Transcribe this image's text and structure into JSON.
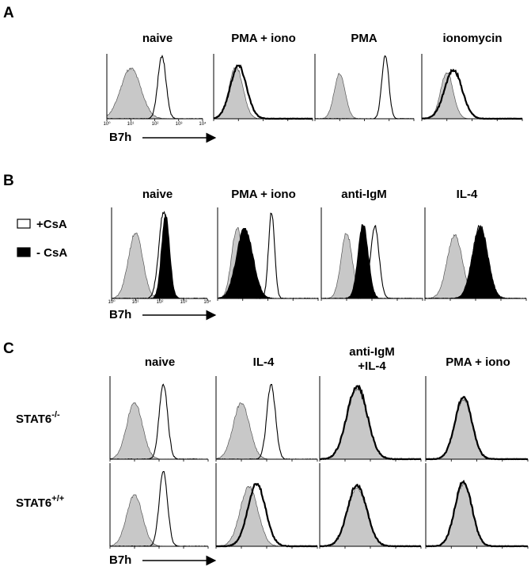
{
  "colors": {
    "control_fill": "#c8c8c8",
    "black": "#000000",
    "white": "#ffffff"
  },
  "panel_a": {
    "letter": "A",
    "x_label": "B7h",
    "titles": [
      "naive",
      "PMA + iono",
      "PMA",
      "ionomycin"
    ],
    "x_ticks": [
      "10⁰",
      "10¹",
      "10²",
      "10³",
      "10⁴"
    ]
  },
  "panel_b": {
    "letter": "B",
    "x_label": "B7h",
    "titles": [
      "naive",
      "PMA + iono",
      "anti-IgM",
      "IL-4"
    ],
    "legend": [
      {
        "label": "+CsA",
        "swatch": "open-box-icon"
      },
      {
        "label": "- CsA",
        "swatch": "filled-box-icon"
      }
    ],
    "x_ticks": [
      "10⁰",
      "10¹",
      "10²",
      "10³",
      "10⁴"
    ]
  },
  "panel_c": {
    "letter": "C",
    "x_label": "B7h",
    "titles": [
      {
        "line1": "naive",
        "line2": ""
      },
      {
        "line1": "IL-4",
        "line2": ""
      },
      {
        "line1": "anti-IgM",
        "line2": "+IL-4"
      },
      {
        "line1": "PMA + iono",
        "line2": ""
      }
    ],
    "rows": [
      {
        "base": "STAT6",
        "sup": "-/-"
      },
      {
        "base": "STAT6",
        "sup": "+/+"
      }
    ]
  },
  "chart_data": [
    {
      "type": "area",
      "panel": "A",
      "x_scale": "log",
      "xlim": [
        1,
        10000
      ],
      "xlabel": "B7h",
      "series_styles": {
        "control": "gray-filled",
        "sample": "open-black-line"
      },
      "plots": [
        {
          "title": "naive",
          "control": {
            "peak": 10,
            "width": 0.42,
            "height": 0.78
          },
          "sample": {
            "peak": 200,
            "width": 0.17,
            "height": 0.97,
            "bold": false,
            "filled": false
          }
        },
        {
          "title": "PMA + iono",
          "control": {
            "peak": 8,
            "width": 0.28,
            "height": 0.8
          },
          "sample": {
            "peak": 10,
            "width": 0.33,
            "height": 0.82,
            "bold": true,
            "filled": false
          }
        },
        {
          "title": "PMA",
          "control": {
            "peak": 10,
            "width": 0.22,
            "height": 0.7
          },
          "sample": {
            "peak": 700,
            "width": 0.14,
            "height": 0.97,
            "bold": false,
            "filled": false
          }
        },
        {
          "title": "ionomycin",
          "control": {
            "peak": 10,
            "width": 0.25,
            "height": 0.72
          },
          "sample": {
            "peak": 18,
            "width": 0.35,
            "height": 0.75,
            "bold": true,
            "filled": false
          }
        }
      ]
    },
    {
      "type": "area",
      "panel": "B",
      "x_scale": "log",
      "xlim": [
        1,
        10000
      ],
      "xlabel": "B7h",
      "series": [
        {
          "name": "+CsA",
          "style": "open-black-line"
        },
        {
          "name": "- CsA",
          "style": "black-filled"
        }
      ],
      "plots": [
        {
          "title": "naive",
          "control": {
            "peak": 10,
            "width": 0.3,
            "height": 0.72
          },
          "plus_csa": {
            "peak": 150,
            "width": 0.2,
            "height": 0.95
          },
          "minus_csa": {
            "peak": 180,
            "width": 0.17,
            "height": 0.92
          }
        },
        {
          "title": "PMA + iono",
          "control": {
            "peak": 6,
            "width": 0.22,
            "height": 0.78
          },
          "plus_csa": {
            "peak": 140,
            "width": 0.12,
            "height": 0.95
          },
          "minus_csa": {
            "peak": 12,
            "width": 0.33,
            "height": 0.77
          }
        },
        {
          "title": "anti-IgM",
          "control": {
            "peak": 10,
            "width": 0.22,
            "height": 0.72
          },
          "plus_csa": {
            "peak": 130,
            "width": 0.17,
            "height": 0.8
          },
          "minus_csa": {
            "peak": 45,
            "width": 0.2,
            "height": 0.82
          }
        },
        {
          "title": "IL-4",
          "control": {
            "peak": 15,
            "width": 0.3,
            "height": 0.7
          },
          "plus_csa": {
            "peak": 150,
            "width": 0.3,
            "height": 0.8
          },
          "minus_csa": {
            "peak": 150,
            "width": 0.3,
            "height": 0.78
          }
        }
      ]
    },
    {
      "type": "area",
      "panel": "C",
      "x_scale": "log",
      "xlim": [
        1,
        10000
      ],
      "xlabel": "B7h",
      "series_styles": {
        "control": "gray-filled",
        "sample": "open-black-line"
      },
      "rows": [
        {
          "genotype": "STAT6-/-",
          "plots": [
            {
              "title": "naive",
              "control": {
                "peak": 10,
                "width": 0.32,
                "height": 0.68
              },
              "sample": {
                "peak": 150,
                "width": 0.17,
                "height": 0.9,
                "bold": false
              }
            },
            {
              "title": "IL-4",
              "control": {
                "peak": 10,
                "width": 0.32,
                "height": 0.68
              },
              "sample": {
                "peak": 150,
                "width": 0.17,
                "height": 0.9,
                "bold": false
              }
            },
            {
              "title": "anti-IgM +IL-4",
              "control": {
                "peak": 30,
                "width": 0.4,
                "height": 0.85
              },
              "sample": {
                "peak": 30,
                "width": 0.4,
                "height": 0.88,
                "bold": true
              }
            },
            {
              "title": "PMA + iono",
              "control": {
                "peak": 30,
                "width": 0.33,
                "height": 0.72
              },
              "sample": {
                "peak": 30,
                "width": 0.33,
                "height": 0.75,
                "bold": true
              }
            }
          ]
        },
        {
          "genotype": "STAT6+/+",
          "plots": [
            {
              "title": "naive",
              "control": {
                "peak": 10,
                "width": 0.32,
                "height": 0.62
              },
              "sample": {
                "peak": 150,
                "width": 0.17,
                "height": 0.9,
                "bold": false
              }
            },
            {
              "title": "IL-4",
              "control": {
                "peak": 20,
                "width": 0.35,
                "height": 0.72
              },
              "sample": {
                "peak": 40,
                "width": 0.35,
                "height": 0.75,
                "bold": true
              }
            },
            {
              "title": "anti-IgM +IL-4",
              "control": {
                "peak": 30,
                "width": 0.38,
                "height": 0.7
              },
              "sample": {
                "peak": 30,
                "width": 0.38,
                "height": 0.74,
                "bold": true
              }
            },
            {
              "title": "PMA + iono",
              "control": {
                "peak": 30,
                "width": 0.33,
                "height": 0.75
              },
              "sample": {
                "peak": 30,
                "width": 0.33,
                "height": 0.78,
                "bold": true
              }
            }
          ]
        }
      ]
    }
  ]
}
